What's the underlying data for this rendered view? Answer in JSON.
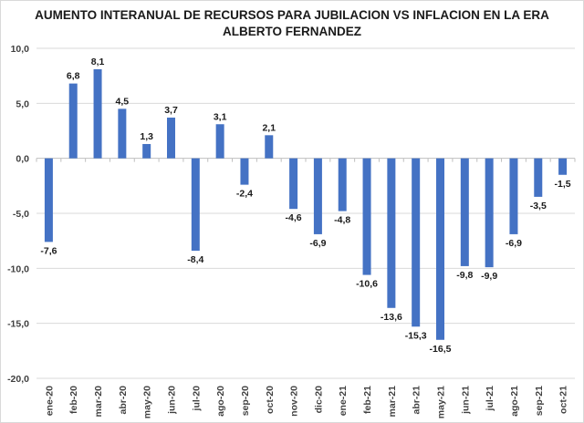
{
  "chart_data": {
    "type": "bar",
    "title": "AUMENTO INTERANUAL DE RECURSOS PARA JUBILACION VS INFLACION EN LA ERA",
    "title_line2": "ALBERTO FERNANDEZ",
    "xlabel": "",
    "ylabel": "",
    "ylim": [
      -20,
      10
    ],
    "yticks": [
      10,
      5,
      0,
      -5,
      -10,
      -15,
      -20
    ],
    "ytick_labels": [
      "10,0",
      "5,0",
      "0,0",
      "-5,0",
      "-10,0",
      "-15,0",
      "-20,0"
    ],
    "grid": true,
    "legend": "none",
    "bar_color": "#4472c4",
    "categories": [
      "ene-20",
      "feb-20",
      "mar-20",
      "abr-20",
      "may-20",
      "jun-20",
      "jul-20",
      "ago-20",
      "sep-20",
      "oct-20",
      "nov-20",
      "dic-20",
      "ene-21",
      "feb-21",
      "mar-21",
      "abr-21",
      "may-21",
      "jun-21",
      "jul-21",
      "ago-21",
      "sep-21",
      "oct-21"
    ],
    "values": [
      -7.6,
      6.8,
      8.1,
      4.5,
      1.3,
      3.7,
      -8.4,
      3.1,
      -2.4,
      2.1,
      -4.6,
      -6.9,
      -4.8,
      -10.6,
      -13.6,
      -15.3,
      -16.5,
      -9.8,
      -9.9,
      -6.9,
      -3.5,
      -1.5
    ],
    "data_labels": [
      "-7,6",
      "6,8",
      "8,1",
      "4,5",
      "1,3",
      "3,7",
      "-8,4",
      "3,1",
      "-2,4",
      "2,1",
      "-4,6",
      "-6,9",
      "-4,8",
      "-10,6",
      "-13,6",
      "-15,3",
      "-16,5",
      "-9,8",
      "-9,9",
      "-6,9",
      "-3,5",
      "-1,5"
    ]
  }
}
